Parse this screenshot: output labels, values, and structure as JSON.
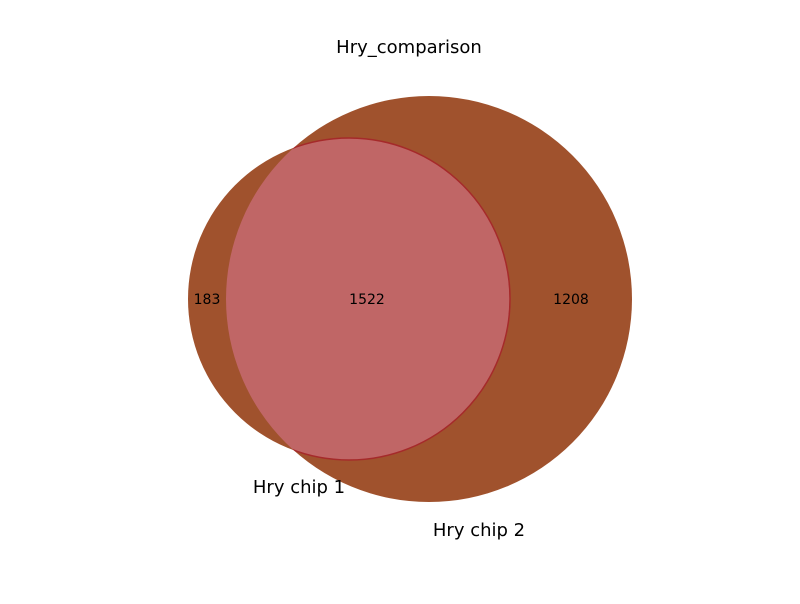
{
  "title": "Hry_comparison",
  "sets": [
    {
      "name": "Hry chip 1",
      "only_count": "183"
    },
    {
      "name": "Hry chip 2",
      "only_count": "1208"
    }
  ],
  "intersection_count": "1522",
  "colors": {
    "background": "#ffffff",
    "set_fill": "#a0522d",
    "intersection_fill": "#c06666",
    "intersection_stroke": "#a52a2a"
  }
}
